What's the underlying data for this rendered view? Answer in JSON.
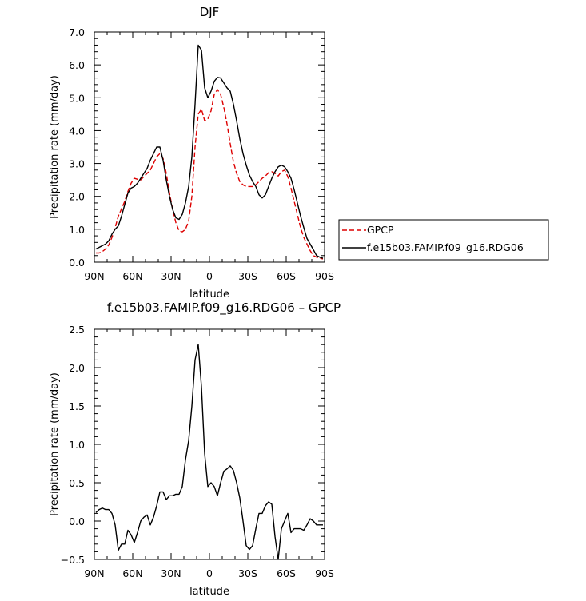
{
  "chart_data": [
    {
      "type": "line",
      "title": "DJF",
      "xlabel": "latitude",
      "ylabel": "Precipitation rate (mm/day)",
      "xlim": [
        90,
        -90
      ],
      "ylim": [
        0,
        7
      ],
      "xticks": [
        90,
        60,
        30,
        0,
        -30,
        -60,
        -90
      ],
      "xtick_labels": [
        "90N",
        "60N",
        "30N",
        "0",
        "30S",
        "60S",
        "90S"
      ],
      "yticks": [
        0,
        1,
        2,
        3,
        4,
        5,
        6,
        7
      ],
      "ytick_labels": [
        "0.0",
        "1.0",
        "2.0",
        "3.0",
        "4.0",
        "5.0",
        "6.0",
        "7.0"
      ],
      "legend": "right",
      "series": [
        {
          "name": "GPCP",
          "color": "#dd0000",
          "dash": true,
          "x": [
            88.75,
            86.25,
            83.75,
            81.25,
            78.75,
            76.25,
            73.75,
            71.25,
            68.75,
            66.25,
            63.75,
            61.25,
            58.75,
            56.25,
            53.75,
            51.25,
            48.75,
            46.25,
            43.75,
            41.25,
            38.75,
            36.25,
            33.75,
            31.25,
            28.75,
            26.25,
            23.75,
            21.25,
            18.75,
            16.25,
            13.75,
            11.25,
            8.75,
            6.25,
            3.75,
            1.25,
            -1.25,
            -3.75,
            -6.25,
            -8.75,
            -11.25,
            -13.75,
            -16.25,
            -18.75,
            -21.25,
            -23.75,
            -26.25,
            -28.75,
            -31.25,
            -33.75,
            -36.25,
            -38.75,
            -41.25,
            -43.75,
            -46.25,
            -48.75,
            -51.25,
            -53.75,
            -56.25,
            -58.75,
            -61.25,
            -63.75,
            -66.25,
            -68.75,
            -71.25,
            -73.75,
            -76.25,
            -78.75,
            -81.25,
            -83.75,
            -86.25,
            -88.75
          ],
          "y": [
            0.28,
            0.28,
            0.32,
            0.4,
            0.52,
            0.75,
            1.05,
            1.4,
            1.62,
            1.85,
            2.15,
            2.4,
            2.55,
            2.52,
            2.5,
            2.6,
            2.7,
            2.8,
            3.0,
            3.2,
            3.3,
            3.15,
            2.7,
            2.1,
            1.6,
            1.2,
            0.95,
            0.92,
            1.0,
            1.25,
            2.0,
            3.5,
            4.5,
            4.65,
            4.3,
            4.35,
            4.6,
            5.1,
            5.25,
            5.1,
            4.7,
            4.2,
            3.6,
            3.05,
            2.7,
            2.45,
            2.35,
            2.3,
            2.3,
            2.3,
            2.35,
            2.45,
            2.55,
            2.62,
            2.72,
            2.75,
            2.7,
            2.62,
            2.75,
            2.8,
            2.6,
            2.25,
            1.85,
            1.45,
            1.05,
            0.75,
            0.55,
            0.35,
            0.2,
            0.15,
            0.12,
            0.1
          ]
        },
        {
          "name": "f.e15b03.FAMIP.f09_g16.RDG06",
          "color": "#000000",
          "dash": false,
          "x": [
            88.75,
            86.25,
            83.75,
            81.25,
            78.75,
            76.25,
            73.75,
            71.25,
            68.75,
            66.25,
            63.75,
            61.25,
            58.75,
            56.25,
            53.75,
            51.25,
            48.75,
            46.25,
            43.75,
            41.25,
            38.75,
            36.25,
            33.75,
            31.25,
            28.75,
            26.25,
            23.75,
            21.25,
            18.75,
            16.25,
            13.75,
            11.25,
            8.75,
            6.25,
            3.75,
            1.25,
            -1.25,
            -3.75,
            -6.25,
            -8.75,
            -11.25,
            -13.75,
            -16.25,
            -18.75,
            -21.25,
            -23.75,
            -26.25,
            -28.75,
            -31.25,
            -33.75,
            -36.25,
            -38.75,
            -41.25,
            -43.75,
            -46.25,
            -48.75,
            -51.25,
            -53.75,
            -56.25,
            -58.75,
            -61.25,
            -63.75,
            -66.25,
            -68.75,
            -71.25,
            -73.75,
            -76.25,
            -78.75,
            -81.25,
            -83.75,
            -86.25,
            -88.75
          ],
          "y": [
            0.4,
            0.45,
            0.5,
            0.55,
            0.65,
            0.85,
            1.0,
            1.1,
            1.4,
            1.75,
            2.1,
            2.25,
            2.3,
            2.4,
            2.55,
            2.7,
            2.85,
            3.1,
            3.3,
            3.5,
            3.5,
            3.1,
            2.5,
            2.0,
            1.6,
            1.35,
            1.3,
            1.45,
            1.8,
            2.3,
            3.2,
            4.8,
            6.6,
            6.45,
            5.3,
            5.0,
            5.2,
            5.5,
            5.62,
            5.6,
            5.45,
            5.3,
            5.2,
            4.8,
            4.3,
            3.75,
            3.3,
            2.95,
            2.65,
            2.45,
            2.3,
            2.05,
            1.95,
            2.05,
            2.3,
            2.55,
            2.75,
            2.9,
            2.95,
            2.9,
            2.75,
            2.55,
            2.2,
            1.8,
            1.4,
            1.05,
            0.72,
            0.55,
            0.38,
            0.2,
            0.15,
            0.12
          ]
        }
      ]
    },
    {
      "type": "line",
      "title": "f.e15b03.FAMIP.f09_g16.RDG06 – GPCP",
      "xlabel": "latitude",
      "ylabel": "Precipitation rate (mm/day)",
      "xlim": [
        90,
        -90
      ],
      "ylim": [
        -0.5,
        2.5
      ],
      "xticks": [
        90,
        60,
        30,
        0,
        -30,
        -60,
        -90
      ],
      "xtick_labels": [
        "90N",
        "60N",
        "30N",
        "0",
        "30S",
        "60S",
        "90S"
      ],
      "yticks": [
        -0.5,
        0,
        0.5,
        1,
        1.5,
        2,
        2.5
      ],
      "ytick_labels": [
        "−0.5",
        "0.0",
        "0.5",
        "1.0",
        "1.5",
        "2.0",
        "2.5"
      ],
      "series": [
        {
          "color": "#000000",
          "x": [
            88.75,
            86.25,
            83.75,
            81.25,
            78.75,
            76.25,
            73.75,
            71.25,
            68.75,
            66.25,
            63.75,
            61.25,
            58.75,
            56.25,
            53.75,
            51.25,
            48.75,
            46.25,
            43.75,
            41.25,
            38.75,
            36.25,
            33.75,
            31.25,
            28.75,
            26.25,
            23.75,
            21.25,
            18.75,
            16.25,
            13.75,
            11.25,
            8.75,
            6.25,
            3.75,
            1.25,
            -1.25,
            -3.75,
            -6.25,
            -8.75,
            -11.25,
            -13.75,
            -16.25,
            -18.75,
            -21.25,
            -23.75,
            -26.25,
            -28.75,
            -31.25,
            -33.75,
            -36.25,
            -38.75,
            -41.25,
            -43.75,
            -46.25,
            -48.75,
            -51.25,
            -53.75,
            -56.25,
            -58.75,
            -61.25,
            -63.75,
            -66.25,
            -68.75,
            -71.25,
            -73.75,
            -76.25,
            -78.75,
            -81.25,
            -83.75,
            -86.25,
            -88.75
          ],
          "y": [
            0.11,
            0.15,
            0.17,
            0.15,
            0.15,
            0.1,
            -0.05,
            -0.38,
            -0.3,
            -0.3,
            -0.12,
            -0.18,
            -0.28,
            -0.15,
            0.0,
            0.05,
            0.08,
            -0.05,
            0.05,
            0.2,
            0.38,
            0.38,
            0.28,
            0.33,
            0.33,
            0.35,
            0.35,
            0.45,
            0.8,
            1.05,
            1.5,
            2.1,
            2.3,
            1.75,
            0.88,
            0.45,
            0.5,
            0.45,
            0.33,
            0.5,
            0.65,
            0.68,
            0.72,
            0.66,
            0.5,
            0.3,
            0.0,
            -0.32,
            -0.37,
            -0.32,
            -0.1,
            0.1,
            0.1,
            0.2,
            0.25,
            0.22,
            -0.2,
            -0.5,
            -0.1,
            0.0,
            0.1,
            -0.15,
            -0.1,
            -0.1,
            -0.1,
            -0.12,
            -0.05,
            0.03,
            0.0,
            -0.05,
            -0.05,
            -0.05
          ]
        }
      ]
    }
  ]
}
